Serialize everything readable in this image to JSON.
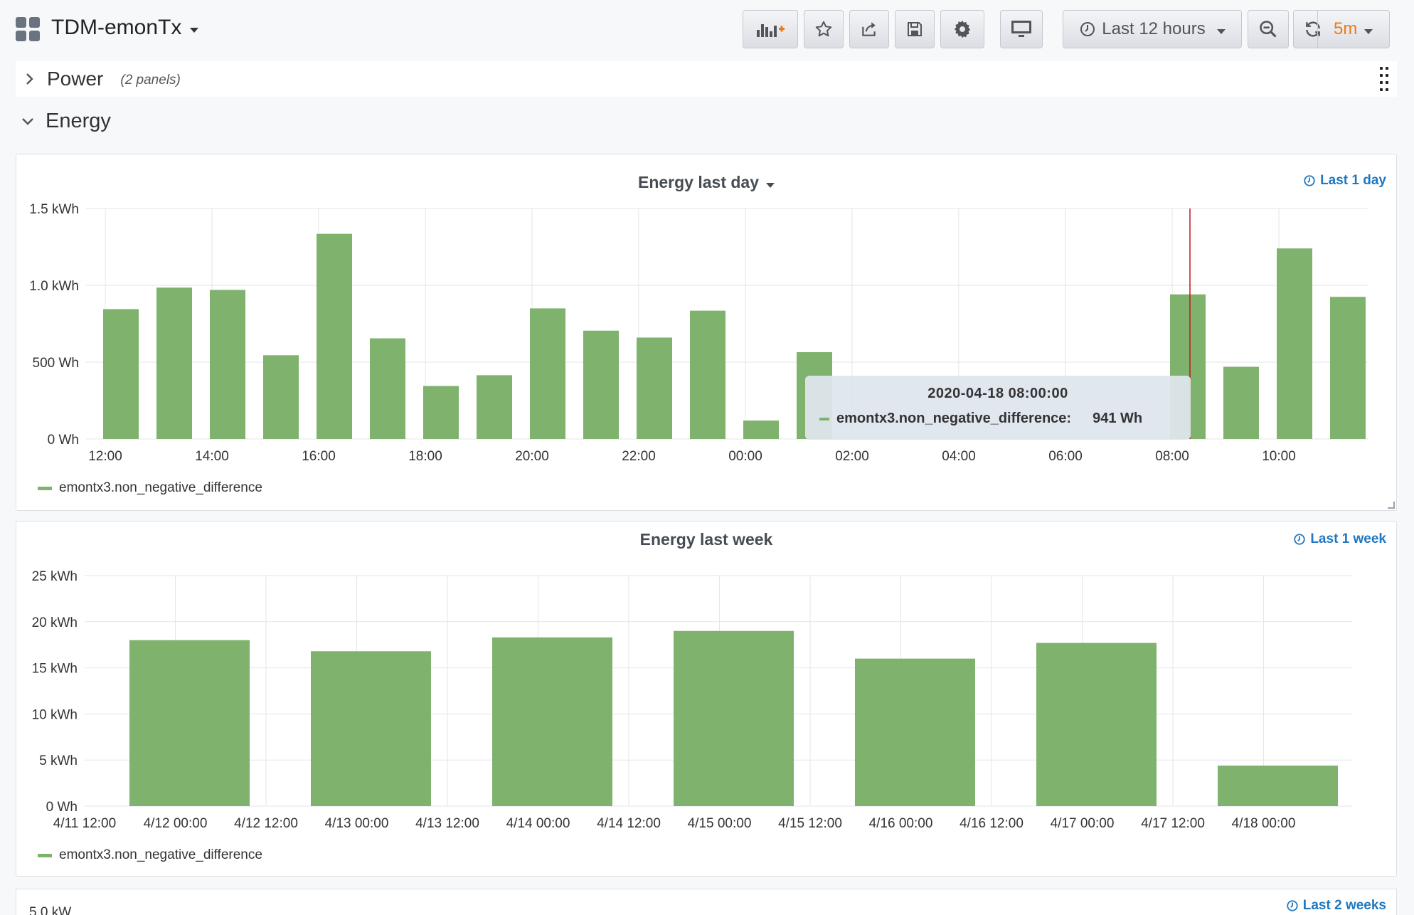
{
  "dashboard": {
    "title": "TDM-emonTx",
    "time_range": "Last 12 hours",
    "refresh_interval": "5m"
  },
  "rows": {
    "power": {
      "title": "Power",
      "panel_count": "(2 panels)",
      "collapsed": true
    },
    "energy": {
      "title": "Energy",
      "collapsed": false
    }
  },
  "icons": {
    "apps": "apps-grid-icon",
    "add_panel": "bar-chart-plus-icon",
    "star": "star-icon",
    "share": "share-icon",
    "save": "save-icon",
    "settings": "gear-icon",
    "tv_mode": "monitor-icon",
    "clock": "clock-icon",
    "zoom_out": "zoom-out-icon",
    "refresh": "refresh-icon",
    "drag": "drag-handle-icon"
  },
  "colors": {
    "bar": "#7eb26d",
    "accent": "#1f78c1",
    "refresh": "#eb7b18",
    "crosshair": "#c4161c"
  },
  "panels": [
    {
      "title": "Energy last day",
      "time_info": "Last 1 day",
      "legend": "emontx3.non_negative_difference",
      "tooltip": {
        "time": "2020-04-18 08:00:00",
        "series": "emontx3.non_negative_difference:",
        "value": "941 Wh"
      }
    },
    {
      "title": "Energy last week",
      "time_info": "Last 1 week",
      "legend": "emontx3.non_negative_difference"
    },
    {
      "time_info": "Last 2 weeks",
      "y_tick_partial": "5.0 kW"
    }
  ],
  "chart_data": [
    {
      "type": "bar",
      "title": "Energy last day",
      "x_ticks": [
        "12:00",
        "14:00",
        "16:00",
        "18:00",
        "20:00",
        "22:00",
        "00:00",
        "02:00",
        "04:00",
        "06:00",
        "08:00",
        "10:00"
      ],
      "y_ticks": [
        "0 Wh",
        "500 Wh",
        "1.0 kWh",
        "1.5 kWh"
      ],
      "ylim_wh": [
        0,
        1500
      ],
      "series": [
        {
          "name": "emontx3.non_negative_difference",
          "unit": "Wh",
          "x": [
            "12:00",
            "13:00",
            "14:00",
            "15:00",
            "16:00",
            "17:00",
            "18:00",
            "19:00",
            "20:00",
            "21:00",
            "22:00",
            "23:00",
            "00:00",
            "01:00",
            "02:00",
            "03:00",
            "04:00",
            "05:00",
            "06:00",
            "07:00",
            "08:00",
            "09:00",
            "10:00",
            "11:00"
          ],
          "values": [
            845,
            985,
            970,
            545,
            1335,
            655,
            345,
            415,
            850,
            705,
            660,
            835,
            120,
            565,
            0,
            0,
            0,
            0,
            0,
            0,
            941,
            470,
            1240,
            925
          ]
        }
      ],
      "grid": true,
      "legend_position": "bottom-left"
    },
    {
      "type": "bar",
      "title": "Energy last week",
      "x_ticks": [
        "4/11 12:00",
        "4/12 00:00",
        "4/12 12:00",
        "4/13 00:00",
        "4/13 12:00",
        "4/14 00:00",
        "4/14 12:00",
        "4/15 00:00",
        "4/15 12:00",
        "4/16 00:00",
        "4/16 12:00",
        "4/17 00:00",
        "4/17 12:00",
        "4/18 00:00"
      ],
      "y_ticks": [
        "0 Wh",
        "5 kWh",
        "10 kWh",
        "15 kWh",
        "20 kWh",
        "25 kWh"
      ],
      "ylim_kwh": [
        0,
        25
      ],
      "series": [
        {
          "name": "emontx3.non_negative_difference",
          "unit": "kWh",
          "x": [
            "4/12",
            "4/13",
            "4/14",
            "4/15",
            "4/16",
            "4/17",
            "4/18"
          ],
          "values": [
            18.0,
            16.8,
            18.3,
            19.0,
            16.0,
            17.7,
            4.4
          ]
        }
      ],
      "grid": true,
      "legend_position": "bottom-left"
    }
  ]
}
